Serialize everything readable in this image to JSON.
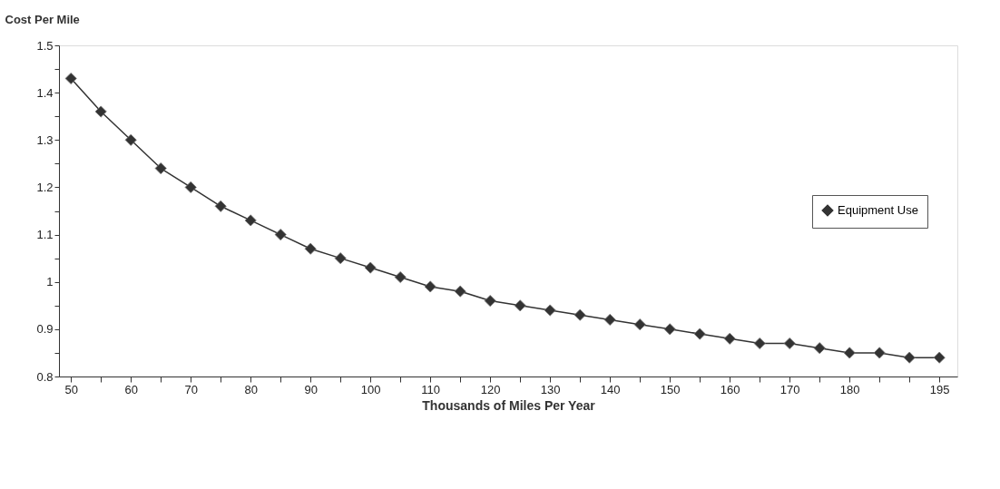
{
  "chart_data": {
    "type": "line",
    "ylabel": "Cost Per Mile",
    "xlabel": "Thousands of Miles Per Year",
    "x": [
      50,
      55,
      60,
      65,
      70,
      75,
      80,
      85,
      90,
      95,
      100,
      105,
      110,
      115,
      120,
      125,
      130,
      135,
      140,
      145,
      150,
      155,
      160,
      165,
      170,
      175,
      180,
      185,
      190,
      195
    ],
    "series": [
      {
        "name": "Equipment Use",
        "color": "#333333",
        "values": [
          1.43,
          1.36,
          1.3,
          1.24,
          1.2,
          1.16,
          1.13,
          1.1,
          1.07,
          1.05,
          1.03,
          1.01,
          0.99,
          0.98,
          0.96,
          0.95,
          0.94,
          0.93,
          0.92,
          0.91,
          0.9,
          0.89,
          0.88,
          0.87,
          0.87,
          0.86,
          0.85,
          0.85,
          0.84,
          0.84
        ]
      }
    ],
    "xlim": [
      48,
      198
    ],
    "xticks": [
      50,
      {
        "value": 55,
        "label": null
      },
      60,
      {
        "value": 65,
        "label": null
      },
      70,
      {
        "value": 75,
        "label": null
      },
      80,
      {
        "value": 85,
        "label": null
      },
      90,
      {
        "value": 95,
        "label": null
      },
      100,
      {
        "value": 105,
        "label": null
      },
      110,
      {
        "value": 115,
        "label": null
      },
      120,
      {
        "value": 125,
        "label": null
      },
      130,
      {
        "value": 135,
        "label": null
      },
      140,
      {
        "value": 145,
        "label": null
      },
      150,
      {
        "value": 155,
        "label": null
      },
      160,
      {
        "value": 165,
        "label": null
      },
      170,
      {
        "value": 175,
        "label": null
      },
      180,
      {
        "value": 185,
        "label": null
      },
      {
        "value": 190,
        "label": null
      },
      195
    ],
    "ylim": [
      0.8,
      1.5
    ],
    "yticks": [
      0.8,
      {
        "value": 0.85,
        "label": null
      },
      0.9,
      {
        "value": 0.95,
        "label": null
      },
      1,
      {
        "value": 1.05,
        "label": null
      },
      1.1,
      {
        "value": 1.15,
        "label": null
      },
      1.2,
      {
        "value": 1.25,
        "label": null
      },
      1.3,
      {
        "value": 1.35,
        "label": null
      },
      1.4,
      {
        "value": 1.45,
        "label": null
      },
      1.5
    ],
    "grid": false,
    "legend": "right",
    "marker": "diamond",
    "line_style": "solid"
  }
}
